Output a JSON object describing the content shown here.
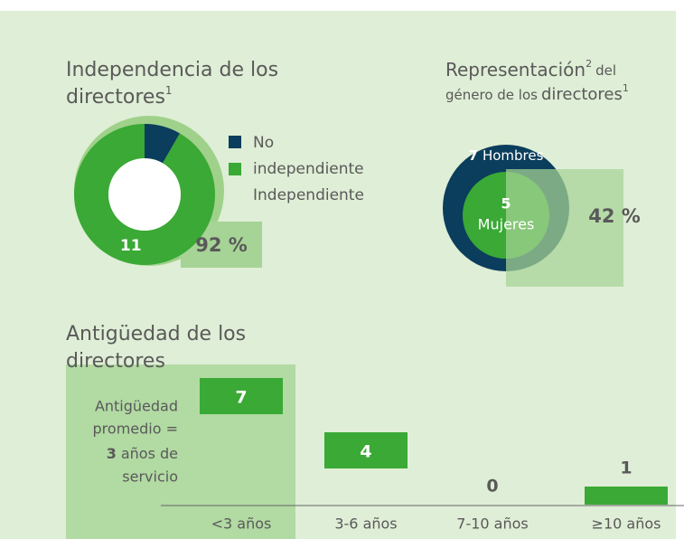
{
  "chart_data": [
    {
      "type": "donut",
      "title_lines": [
        "Independencia de los",
        "directores"
      ],
      "title_note": "1",
      "legend_lines": [
        "No",
        "independiente",
        "Independiente"
      ],
      "values": [
        1,
        11
      ],
      "colors": [
        "#0b3d5c",
        "#3aa935"
      ],
      "percent": 92,
      "percent_label": "92 %"
    },
    {
      "type": "circles",
      "title_lines": [
        "Representación",
        "género de los"
      ],
      "title_notes": [
        "2",
        "1"
      ],
      "title_small": "del",
      "title_word": "directores",
      "categories": [
        "Hombres",
        "Mujeres"
      ],
      "values": [
        7,
        5
      ],
      "colors": [
        "#0b3d5c",
        "#3aa935"
      ],
      "percent": 42,
      "percent_label": "42 %"
    },
    {
      "type": "bar",
      "title_lines": [
        "Antigüedad de los",
        "directores"
      ],
      "annotation": {
        "lines": [
          "Antigüedad",
          "promedio ="
        ],
        "value": 3,
        "value_suffix": "años de",
        "last": "servicio"
      },
      "categories": [
        "<3 años",
        "3-6 años",
        "7-10 años",
        "≥10 años"
      ],
      "values": [
        7,
        4,
        0,
        1
      ],
      "color": "#3aa935"
    }
  ]
}
